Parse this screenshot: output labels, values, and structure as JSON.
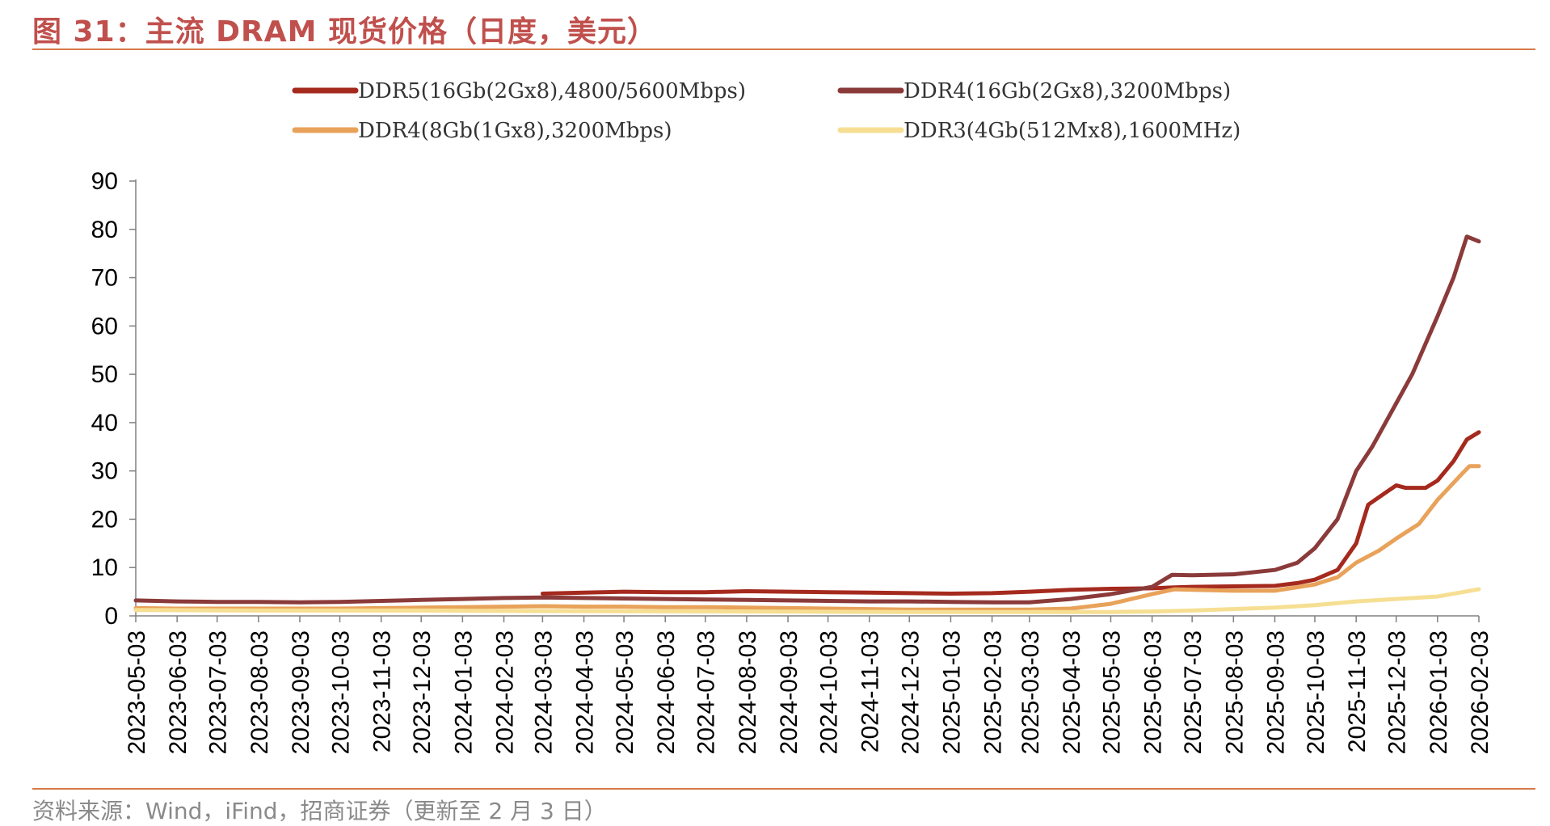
{
  "header": {
    "title": "图 31：主流 DRAM 现货价格（日度，美元）"
  },
  "footer": {
    "source": "资料来源：Wind，iFind，招商证券（更新至 2 月 3 日）"
  },
  "chart_data": {
    "type": "line",
    "title": "图 31：主流 DRAM 现货价格（日度，美元）",
    "xlabel": "",
    "ylabel": "",
    "ylim": [
      0,
      90
    ],
    "yticks": [
      0,
      10,
      20,
      30,
      40,
      50,
      60,
      70,
      80,
      90
    ],
    "grid": false,
    "legend_position": "top",
    "x_tick_labels": [
      "2023-05-03",
      "2023-06-03",
      "2023-07-03",
      "2023-08-03",
      "2023-09-03",
      "2023-10-03",
      "2023-11-03",
      "2023-12-03",
      "2024-01-03",
      "2024-02-03",
      "2024-03-03",
      "2024-04-03",
      "2024-05-03",
      "2024-06-03",
      "2024-07-03",
      "2024-08-03",
      "2024-09-03",
      "2024-10-03",
      "2024-11-03",
      "2024-12-03",
      "2025-01-03",
      "2025-02-03",
      "2025-03-03",
      "2025-04-03",
      "2025-05-03",
      "2025-06-03",
      "2025-07-03",
      "2025-08-03",
      "2025-09-03",
      "2025-10-03",
      "2025-11-03",
      "2025-12-03",
      "2026-01-03",
      "2026-02-03"
    ],
    "series": [
      {
        "name": "DDR5(16Gb(2Gx8),4800/5600Mbps)",
        "color": "#a52a1e",
        "points": [
          [
            "2024-03-03",
            4.6
          ],
          [
            "2024-04-03",
            4.8
          ],
          [
            "2024-05-03",
            5.0
          ],
          [
            "2024-06-03",
            4.9
          ],
          [
            "2024-07-03",
            4.9
          ],
          [
            "2024-08-03",
            5.1
          ],
          [
            "2024-09-03",
            5.0
          ],
          [
            "2024-10-03",
            4.9
          ],
          [
            "2024-11-03",
            4.8
          ],
          [
            "2024-12-03",
            4.7
          ],
          [
            "2025-01-03",
            4.6
          ],
          [
            "2025-02-03",
            4.7
          ],
          [
            "2025-03-03",
            5.0
          ],
          [
            "2025-04-03",
            5.4
          ],
          [
            "2025-05-03",
            5.6
          ],
          [
            "2025-06-03",
            5.7
          ],
          [
            "2025-06-20",
            5.9
          ],
          [
            "2025-07-03",
            6.0
          ],
          [
            "2025-08-03",
            6.1
          ],
          [
            "2025-09-03",
            6.2
          ],
          [
            "2025-09-20",
            6.8
          ],
          [
            "2025-10-03",
            7.5
          ],
          [
            "2025-10-20",
            9.5
          ],
          [
            "2025-11-03",
            15.0
          ],
          [
            "2025-11-12",
            23.0
          ],
          [
            "2025-11-25",
            25.5
          ],
          [
            "2025-12-03",
            27.0
          ],
          [
            "2025-12-10",
            26.5
          ],
          [
            "2025-12-25",
            26.5
          ],
          [
            "2026-01-03",
            28.0
          ],
          [
            "2026-01-15",
            32.0
          ],
          [
            "2026-01-25",
            36.5
          ],
          [
            "2026-02-03",
            38.0
          ]
        ]
      },
      {
        "name": "DDR4(16Gb(2Gx8),3200Mbps)",
        "color": "#8b3a3a",
        "points": [
          [
            "2023-05-03",
            3.2
          ],
          [
            "2023-06-03",
            3.0
          ],
          [
            "2023-07-03",
            2.9
          ],
          [
            "2023-08-03",
            2.9
          ],
          [
            "2023-09-03",
            2.8
          ],
          [
            "2023-10-03",
            2.9
          ],
          [
            "2023-11-03",
            3.1
          ],
          [
            "2023-12-03",
            3.3
          ],
          [
            "2024-01-03",
            3.5
          ],
          [
            "2024-02-03",
            3.7
          ],
          [
            "2024-03-03",
            3.8
          ],
          [
            "2024-04-03",
            3.7
          ],
          [
            "2024-05-03",
            3.6
          ],
          [
            "2024-06-03",
            3.5
          ],
          [
            "2024-07-03",
            3.4
          ],
          [
            "2024-08-03",
            3.3
          ],
          [
            "2024-09-03",
            3.2
          ],
          [
            "2024-10-03",
            3.1
          ],
          [
            "2024-11-03",
            3.0
          ],
          [
            "2024-12-03",
            3.0
          ],
          [
            "2025-01-03",
            2.9
          ],
          [
            "2025-02-03",
            2.8
          ],
          [
            "2025-03-03",
            2.8
          ],
          [
            "2025-04-03",
            3.5
          ],
          [
            "2025-05-03",
            4.5
          ],
          [
            "2025-06-03",
            6.0
          ],
          [
            "2025-06-18",
            8.5
          ],
          [
            "2025-07-03",
            8.4
          ],
          [
            "2025-08-03",
            8.6
          ],
          [
            "2025-09-03",
            9.5
          ],
          [
            "2025-09-20",
            11.0
          ],
          [
            "2025-10-03",
            14.0
          ],
          [
            "2025-10-20",
            20.0
          ],
          [
            "2025-11-03",
            30.0
          ],
          [
            "2025-11-15",
            35.0
          ],
          [
            "2025-12-03",
            44.0
          ],
          [
            "2025-12-15",
            50.0
          ],
          [
            "2026-01-03",
            62.0
          ],
          [
            "2026-01-15",
            70.0
          ],
          [
            "2026-01-25",
            78.5
          ],
          [
            "2026-02-03",
            77.5
          ]
        ]
      },
      {
        "name": "DDR4(8Gb(1Gx8),3200Mbps)",
        "color": "#e8a25a",
        "points": [
          [
            "2023-05-03",
            1.6
          ],
          [
            "2023-06-03",
            1.5
          ],
          [
            "2023-07-03",
            1.5
          ],
          [
            "2023-08-03",
            1.5
          ],
          [
            "2023-09-03",
            1.5
          ],
          [
            "2023-10-03",
            1.5
          ],
          [
            "2023-11-03",
            1.6
          ],
          [
            "2023-12-03",
            1.7
          ],
          [
            "2024-01-03",
            1.8
          ],
          [
            "2024-02-03",
            1.9
          ],
          [
            "2024-03-03",
            2.0
          ],
          [
            "2024-04-03",
            1.9
          ],
          [
            "2024-05-03",
            1.9
          ],
          [
            "2024-06-03",
            1.8
          ],
          [
            "2024-07-03",
            1.8
          ],
          [
            "2024-08-03",
            1.7
          ],
          [
            "2024-09-03",
            1.6
          ],
          [
            "2024-10-03",
            1.5
          ],
          [
            "2024-11-03",
            1.4
          ],
          [
            "2024-12-03",
            1.3
          ],
          [
            "2025-01-03",
            1.3
          ],
          [
            "2025-02-03",
            1.3
          ],
          [
            "2025-03-03",
            1.3
          ],
          [
            "2025-04-03",
            1.5
          ],
          [
            "2025-05-03",
            2.5
          ],
          [
            "2025-06-03",
            4.5
          ],
          [
            "2025-06-20",
            5.5
          ],
          [
            "2025-07-03",
            5.4
          ],
          [
            "2025-08-03",
            5.2
          ],
          [
            "2025-09-03",
            5.2
          ],
          [
            "2025-10-03",
            6.5
          ],
          [
            "2025-10-20",
            8.0
          ],
          [
            "2025-11-03",
            11.0
          ],
          [
            "2025-11-20",
            13.5
          ],
          [
            "2025-12-03",
            16.0
          ],
          [
            "2025-12-20",
            19.0
          ],
          [
            "2026-01-03",
            24.0
          ],
          [
            "2026-01-20",
            29.0
          ],
          [
            "2026-01-27",
            31.0
          ],
          [
            "2026-02-03",
            31.0
          ]
        ]
      },
      {
        "name": "DDR3(4Gb(512Mx8),1600MHz)",
        "color": "#f6df93",
        "points": [
          [
            "2023-05-03",
            1.2
          ],
          [
            "2023-08-03",
            1.1
          ],
          [
            "2023-12-03",
            1.1
          ],
          [
            "2024-03-03",
            1.0
          ],
          [
            "2024-08-03",
            0.9
          ],
          [
            "2024-12-03",
            0.8
          ],
          [
            "2025-03-03",
            0.8
          ],
          [
            "2025-05-03",
            0.8
          ],
          [
            "2025-06-03",
            0.9
          ],
          [
            "2025-07-03",
            1.1
          ],
          [
            "2025-08-03",
            1.4
          ],
          [
            "2025-09-03",
            1.7
          ],
          [
            "2025-10-03",
            2.2
          ],
          [
            "2025-11-03",
            3.0
          ],
          [
            "2025-12-03",
            3.5
          ],
          [
            "2026-01-03",
            4.0
          ],
          [
            "2026-02-03",
            5.5
          ]
        ]
      }
    ]
  }
}
